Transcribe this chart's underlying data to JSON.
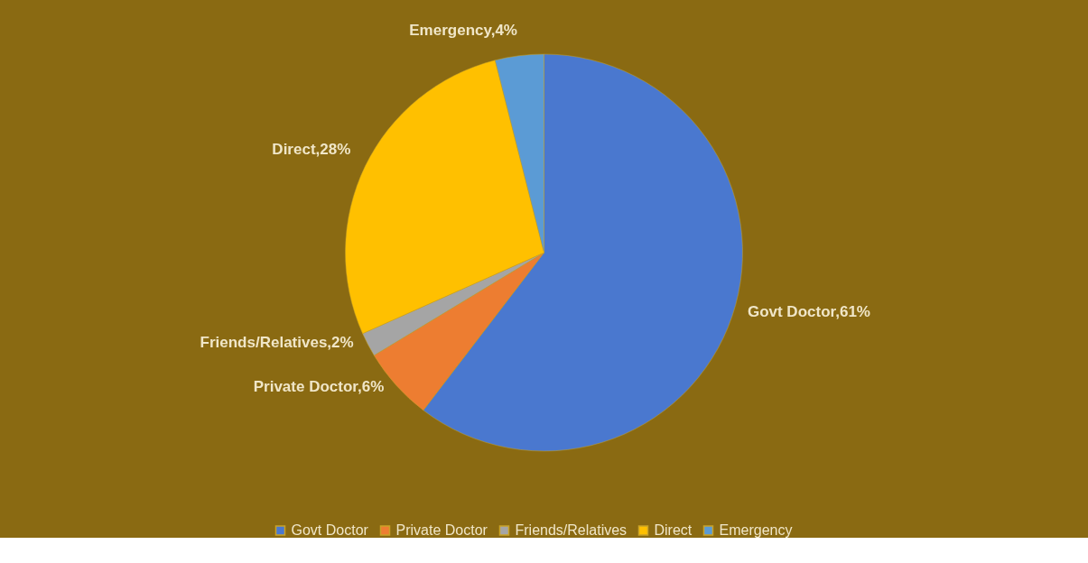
{
  "chart_data": {
    "type": "pie",
    "categories": [
      "Govt Doctor",
      "Private Doctor",
      "Friends/Relatives",
      "Direct",
      "Emergency"
    ],
    "values": [
      61,
      6,
      2,
      28,
      4
    ],
    "value_labels": [
      "Govt Doctor,61%",
      "Private Doctor,6%",
      "Friends/Relatives,2%",
      "Direct,28%",
      "Emergency,4%"
    ],
    "colors": [
      "#4a78cf",
      "#ed7d31",
      "#a5a5a5",
      "#ffc000",
      "#5b9bd5"
    ],
    "legend": "bottom"
  }
}
